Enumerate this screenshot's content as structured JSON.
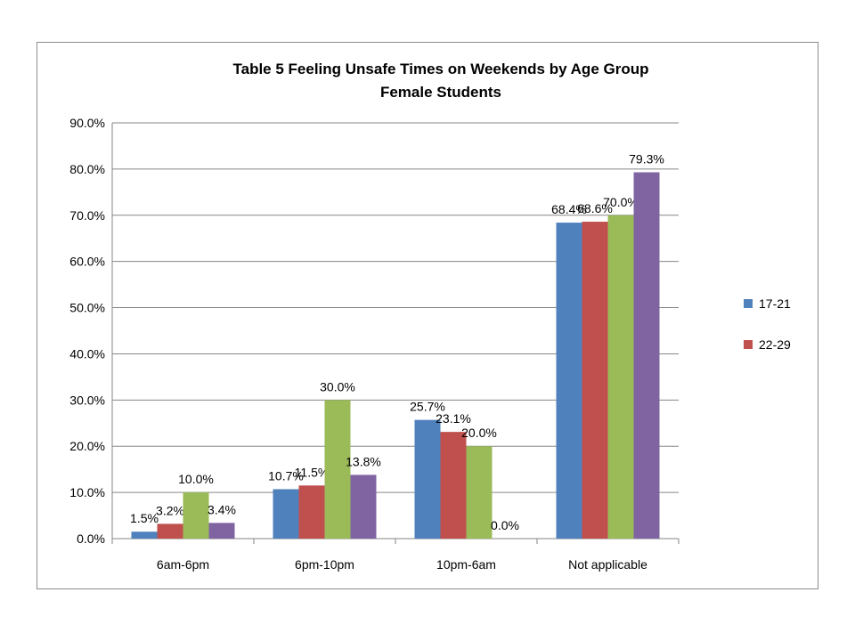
{
  "chart_data": {
    "type": "bar",
    "title": "Table 5    Feeling Unsafe Times on Weekends by Age Group",
    "subtitle": "Female Students",
    "xlabel": "",
    "ylabel": "",
    "categories": [
      "6am-6pm",
      "6pm-10pm",
      "10pm-6am",
      "Not applicable"
    ],
    "ylim": [
      0,
      90
    ],
    "ytick_step": 10,
    "ytick_format": "percent_1dp",
    "grid": true,
    "legend_position": "right",
    "series": [
      {
        "name": "17-21",
        "color": "#4f81bd",
        "values": [
          1.5,
          10.7,
          25.7,
          68.4
        ]
      },
      {
        "name": "22-29",
        "color": "#c0504d",
        "values": [
          3.2,
          11.5,
          23.1,
          68.6
        ]
      },
      {
        "color": "#9bbb59",
        "values": [
          10.0,
          30.0,
          20.0,
          70.0
        ]
      },
      {
        "color": "#8064a2",
        "values": [
          3.4,
          13.8,
          0.0,
          79.3
        ]
      }
    ]
  }
}
